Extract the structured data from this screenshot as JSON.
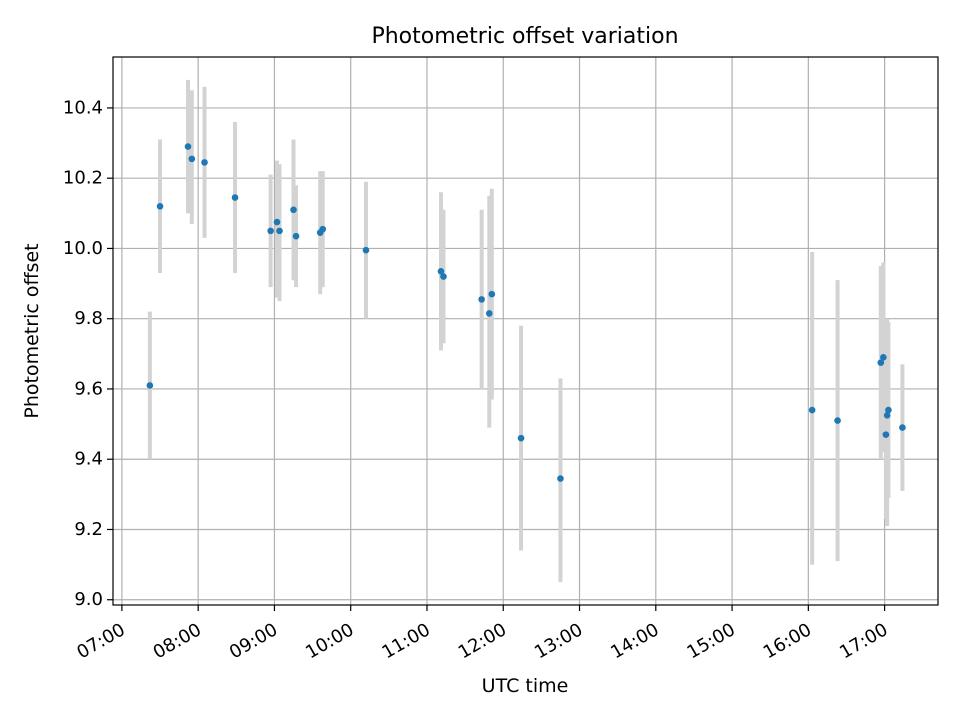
{
  "chart_data": {
    "type": "scatter",
    "title": "Photometric offset variation",
    "xlabel": "UTC time",
    "ylabel": "Photometric offset",
    "grid": true,
    "legend": "none",
    "x_ticks": [
      "07:00",
      "08:00",
      "09:00",
      "10:00",
      "11:00",
      "12:00",
      "13:00",
      "14:00",
      "15:00",
      "16:00",
      "17:00"
    ],
    "y_ticks": [
      "9.0",
      "9.2",
      "9.4",
      "9.6",
      "9.8",
      "10.0",
      "10.2",
      "10.4"
    ],
    "xlim": [
      "06:53",
      "17:42"
    ],
    "ylim": [
      8.985,
      10.545
    ],
    "colors": {
      "point": "#1f77b4",
      "errorbar": "#d3d3d3",
      "grid": "#b0b0b0"
    },
    "series": [
      {
        "points": [
          {
            "x": "07:22",
            "y": 9.61,
            "lo": 9.4,
            "hi": 9.82
          },
          {
            "x": "07:30",
            "y": 10.12,
            "lo": 9.93,
            "hi": 10.31
          },
          {
            "x": "07:52",
            "y": 10.29,
            "lo": 10.1,
            "hi": 10.48
          },
          {
            "x": "07:55",
            "y": 10.255,
            "lo": 10.07,
            "hi": 10.45
          },
          {
            "x": "08:05",
            "y": 10.245,
            "lo": 10.03,
            "hi": 10.46
          },
          {
            "x": "08:29",
            "y": 10.145,
            "lo": 9.93,
            "hi": 10.36
          },
          {
            "x": "08:57",
            "y": 10.05,
            "lo": 9.89,
            "hi": 10.21
          },
          {
            "x": "09:02",
            "y": 10.075,
            "lo": 9.86,
            "hi": 10.25
          },
          {
            "x": "09:04",
            "y": 10.05,
            "lo": 9.85,
            "hi": 10.24
          },
          {
            "x": "09:15",
            "y": 10.11,
            "lo": 9.91,
            "hi": 10.31
          },
          {
            "x": "09:17",
            "y": 10.035,
            "lo": 9.89,
            "hi": 10.18
          },
          {
            "x": "09:36",
            "y": 10.045,
            "lo": 9.87,
            "hi": 10.22
          },
          {
            "x": "09:38",
            "y": 10.055,
            "lo": 9.89,
            "hi": 10.22
          },
          {
            "x": "10:12",
            "y": 9.995,
            "lo": 9.8,
            "hi": 10.19
          },
          {
            "x": "11:11",
            "y": 9.935,
            "lo": 9.71,
            "hi": 10.16
          },
          {
            "x": "11:13",
            "y": 9.92,
            "lo": 9.73,
            "hi": 10.11
          },
          {
            "x": "11:43",
            "y": 9.855,
            "lo": 9.6,
            "hi": 10.11
          },
          {
            "x": "11:49",
            "y": 9.815,
            "lo": 9.49,
            "hi": 10.15
          },
          {
            "x": "11:51",
            "y": 9.87,
            "lo": 9.57,
            "hi": 10.17
          },
          {
            "x": "12:14",
            "y": 9.46,
            "lo": 9.14,
            "hi": 9.78
          },
          {
            "x": "12:45",
            "y": 9.345,
            "lo": 9.05,
            "hi": 9.63
          },
          {
            "x": "16:03",
            "y": 9.54,
            "lo": 9.1,
            "hi": 9.99
          },
          {
            "x": "16:23",
            "y": 9.51,
            "lo": 9.11,
            "hi": 9.91
          },
          {
            "x": "16:57",
            "y": 9.675,
            "lo": 9.4,
            "hi": 9.95
          },
          {
            "x": "16:59",
            "y": 9.69,
            "lo": 9.42,
            "hi": 9.96
          },
          {
            "x": "17:01",
            "y": 9.47,
            "lo": 9.23,
            "hi": 9.79
          },
          {
            "x": "17:02",
            "y": 9.525,
            "lo": 9.21,
            "hi": 9.8
          },
          {
            "x": "17:03",
            "y": 9.54,
            "lo": 9.29,
            "hi": 9.79
          },
          {
            "x": "17:14",
            "y": 9.49,
            "lo": 9.31,
            "hi": 9.67
          }
        ]
      }
    ]
  }
}
